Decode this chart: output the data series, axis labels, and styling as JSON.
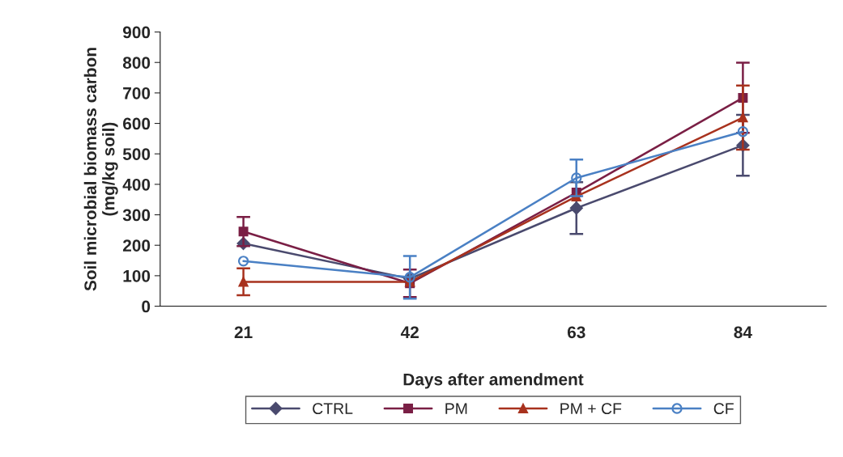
{
  "chart_data": {
    "type": "line",
    "xlabel": "Days after amendment",
    "ylabel": "Soil microbial biomass carbon\n(mg/kg soil)",
    "categories": [
      "21",
      "42",
      "63",
      "84"
    ],
    "ylim": [
      0,
      900
    ],
    "yticks": [
      0,
      100,
      200,
      300,
      400,
      500,
      600,
      700,
      800,
      900
    ],
    "grid": false,
    "legend": "bottom",
    "series": [
      {
        "name": "CTRL",
        "color": "#4a4a6e",
        "marker": "diamond",
        "values": [
          206,
          90,
          322,
          528
        ],
        "errors": [
          null,
          null,
          85,
          100
        ]
      },
      {
        "name": "PM",
        "color": "#7a1f45",
        "marker": "square",
        "values": [
          245,
          75,
          373,
          684
        ],
        "errors": [
          48,
          45,
          null,
          115
        ]
      },
      {
        "name": "PM + CF",
        "color": "#a8321e",
        "marker": "triangle",
        "values": [
          80,
          80,
          360,
          619
        ],
        "errors": [
          44,
          null,
          null,
          105
        ]
      },
      {
        "name": "CF",
        "color": "#4a80c4",
        "marker": "circle",
        "values": [
          148,
          95,
          421,
          573
        ],
        "errors": [
          null,
          70,
          60,
          null
        ]
      }
    ]
  }
}
